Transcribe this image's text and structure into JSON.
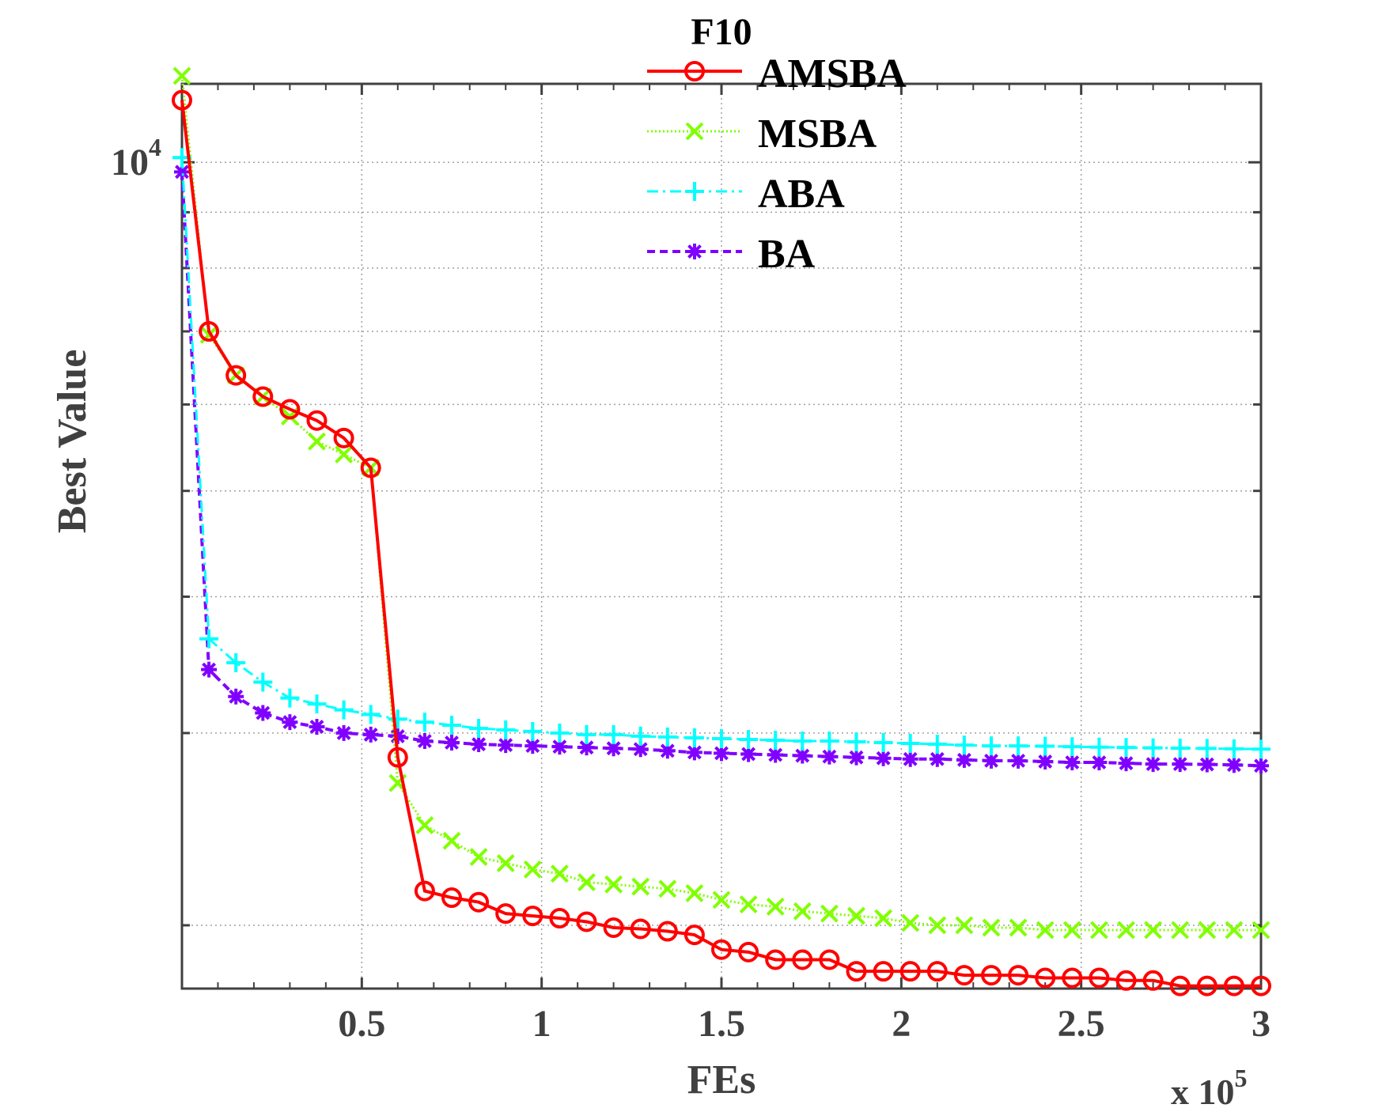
{
  "chart_data": {
    "type": "line",
    "title": "F10",
    "xlabel": "FEs",
    "ylabel": "Best Value",
    "x_multiplier_label": "x 10",
    "x_multiplier_exponent": "5",
    "xlim": [
      0,
      300000
    ],
    "ylim": [
      1750,
      11800
    ],
    "y_scale": "log",
    "grid": true,
    "legend_position": "top",
    "x_ticks": [
      50000,
      100000,
      150000,
      200000,
      250000,
      300000
    ],
    "x_tick_labels": [
      "0.5",
      "1",
      "1.5",
      "2",
      "2.5",
      "3"
    ],
    "y_ticks": [
      10000
    ],
    "y_tick_labels": [
      "10"
    ],
    "y_tick_exponent": "4",
    "y_minor_ticks": [
      2000,
      3000,
      4000,
      5000,
      6000,
      7000,
      8000,
      9000
    ],
    "x": [
      0,
      7500,
      15000,
      22500,
      30000,
      37500,
      45000,
      52500,
      60000,
      67500,
      75000,
      82500,
      90000,
      97500,
      105000,
      112500,
      120000,
      127500,
      135000,
      142500,
      150000,
      157500,
      165000,
      172500,
      180000,
      187500,
      195000,
      202500,
      210000,
      217500,
      225000,
      232500,
      240000,
      247500,
      255000,
      262500,
      270000,
      277500,
      285000,
      292500,
      300000
    ],
    "series": [
      {
        "name": "AMSBA",
        "color": "#ff0000",
        "line_style": "solid",
        "marker": "circle",
        "values": [
          11400,
          7000,
          6380,
          6100,
          5940,
          5800,
          5590,
          5250,
          2850,
          2150,
          2120,
          2100,
          2050,
          2040,
          2030,
          2015,
          1990,
          1985,
          1975,
          1960,
          1900,
          1890,
          1860,
          1860,
          1860,
          1815,
          1815,
          1815,
          1815,
          1800,
          1800,
          1800,
          1790,
          1790,
          1790,
          1780,
          1780,
          1760,
          1760,
          1760,
          1760
        ]
      },
      {
        "name": "MSBA",
        "color": "#80ff00",
        "line_style": "dotted",
        "marker": "x",
        "values": [
          12000,
          6950,
          6380,
          6100,
          5850,
          5550,
          5400,
          5250,
          2700,
          2470,
          2390,
          2310,
          2280,
          2250,
          2230,
          2190,
          2180,
          2170,
          2160,
          2140,
          2110,
          2090,
          2080,
          2060,
          2050,
          2040,
          2030,
          2010,
          2000,
          2000,
          1990,
          1990,
          1980,
          1980,
          1980,
          1980,
          1980,
          1980,
          1980,
          1980,
          1980
        ]
      },
      {
        "name": "ABA",
        "color": "#00ffff",
        "line_style": "dashdot",
        "marker": "plus",
        "values": [
          10100,
          3660,
          3480,
          3340,
          3230,
          3190,
          3150,
          3120,
          3090,
          3070,
          3050,
          3030,
          3020,
          3010,
          3000,
          2990,
          2990,
          2980,
          2975,
          2970,
          2965,
          2960,
          2955,
          2950,
          2950,
          2945,
          2940,
          2935,
          2930,
          2925,
          2920,
          2920,
          2918,
          2915,
          2912,
          2910,
          2908,
          2906,
          2904,
          2902,
          2900
        ]
      },
      {
        "name": "BA",
        "color": "#8000ff",
        "line_style": "dashed",
        "marker": "asterisk",
        "values": [
          9800,
          3430,
          3240,
          3130,
          3070,
          3040,
          3000,
          2990,
          2980,
          2950,
          2940,
          2930,
          2925,
          2920,
          2915,
          2910,
          2905,
          2900,
          2890,
          2880,
          2875,
          2870,
          2865,
          2860,
          2855,
          2850,
          2845,
          2840,
          2840,
          2835,
          2830,
          2830,
          2825,
          2820,
          2820,
          2815,
          2810,
          2810,
          2808,
          2805,
          2800
        ]
      }
    ]
  }
}
